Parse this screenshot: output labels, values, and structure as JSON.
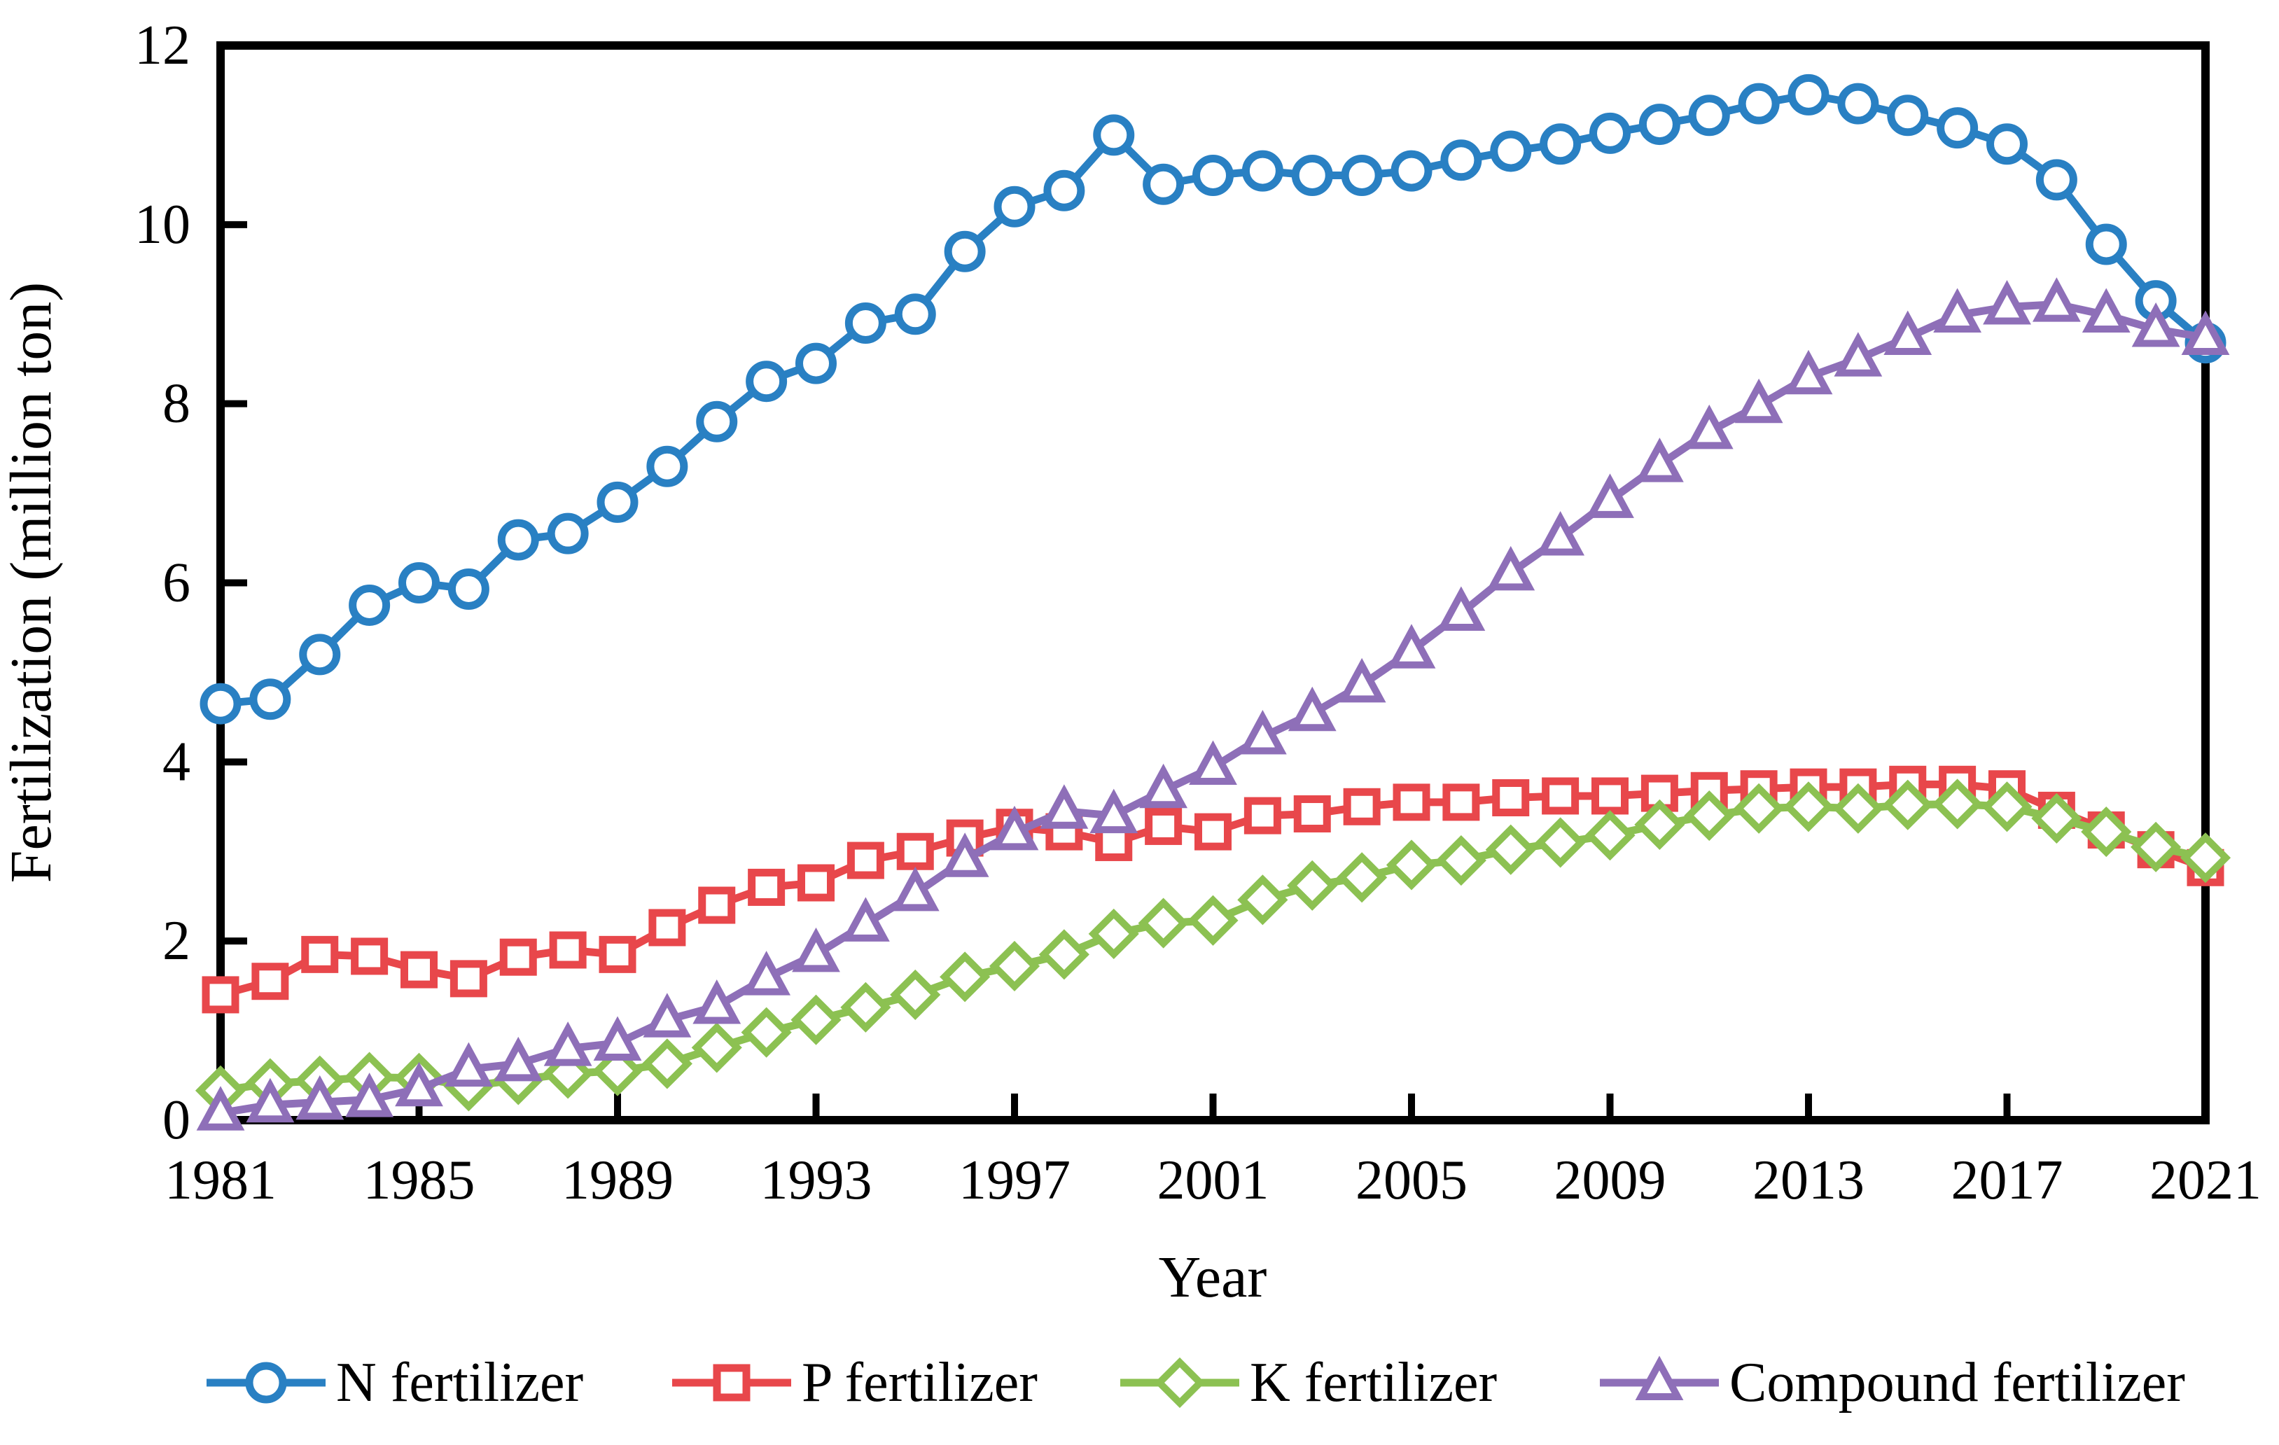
{
  "figure": {
    "background": "#ffffff",
    "text_color": "#000000"
  },
  "chart_data": {
    "type": "line",
    "title": "",
    "xlabel": "Year",
    "ylabel": "Fertilization (million ton)",
    "xlim": [
      1981,
      2021
    ],
    "ylim": [
      0,
      12
    ],
    "x_ticks": [
      1981,
      1985,
      1989,
      1993,
      1997,
      2001,
      2005,
      2009,
      2013,
      2017,
      2021
    ],
    "y_ticks": [
      0,
      2,
      4,
      6,
      8,
      10,
      12
    ],
    "grid": false,
    "legend_position": "bottom",
    "x": [
      1981,
      1982,
      1983,
      1984,
      1985,
      1986,
      1987,
      1988,
      1989,
      1990,
      1991,
      1992,
      1993,
      1994,
      1995,
      1996,
      1997,
      1998,
      1999,
      2000,
      2001,
      2002,
      2003,
      2004,
      2005,
      2006,
      2007,
      2008,
      2009,
      2010,
      2011,
      2012,
      2013,
      2014,
      2015,
      2016,
      2017,
      2018,
      2019,
      2020,
      2021
    ],
    "series": [
      {
        "name": "N fertilizer",
        "marker": "circle",
        "color": "#2980C3",
        "values": [
          4.65,
          4.7,
          5.2,
          5.75,
          6.0,
          5.93,
          6.48,
          6.55,
          6.9,
          7.3,
          7.8,
          8.25,
          8.45,
          8.9,
          9.0,
          9.7,
          10.2,
          10.38,
          11.0,
          10.45,
          10.55,
          10.6,
          10.55,
          10.55,
          10.6,
          10.72,
          10.82,
          10.9,
          11.02,
          11.12,
          11.22,
          11.35,
          11.45,
          11.35,
          11.22,
          11.08,
          10.9,
          10.5,
          9.78,
          9.15,
          8.68
        ]
      },
      {
        "name": "P fertilizer",
        "marker": "square",
        "color": "#E8474B",
        "values": [
          1.4,
          1.55,
          1.85,
          1.83,
          1.68,
          1.58,
          1.82,
          1.9,
          1.85,
          2.15,
          2.4,
          2.6,
          2.65,
          2.9,
          3.0,
          3.15,
          3.27,
          3.22,
          3.1,
          3.28,
          3.22,
          3.4,
          3.42,
          3.5,
          3.55,
          3.55,
          3.6,
          3.62,
          3.62,
          3.65,
          3.68,
          3.7,
          3.72,
          3.72,
          3.75,
          3.75,
          3.7,
          3.46,
          3.24,
          3.02,
          2.82
        ]
      },
      {
        "name": "K fertilizer",
        "marker": "diamond",
        "color": "#8CC152",
        "values": [
          0.33,
          0.41,
          0.44,
          0.48,
          0.47,
          0.38,
          0.45,
          0.52,
          0.55,
          0.63,
          0.81,
          0.98,
          1.12,
          1.26,
          1.4,
          1.6,
          1.72,
          1.85,
          2.08,
          2.2,
          2.23,
          2.46,
          2.62,
          2.71,
          2.85,
          2.9,
          3.02,
          3.1,
          3.18,
          3.3,
          3.4,
          3.48,
          3.5,
          3.48,
          3.52,
          3.53,
          3.5,
          3.37,
          3.22,
          3.05,
          2.93
        ]
      },
      {
        "name": "Compound fertilizer",
        "marker": "triangle",
        "color": "#8E6FB8",
        "values": [
          0.08,
          0.17,
          0.2,
          0.23,
          0.35,
          0.57,
          0.63,
          0.8,
          0.86,
          1.12,
          1.27,
          1.59,
          1.85,
          2.19,
          2.53,
          2.91,
          3.21,
          3.45,
          3.4,
          3.68,
          3.94,
          4.28,
          4.54,
          4.86,
          5.24,
          5.66,
          6.11,
          6.5,
          6.92,
          7.32,
          7.69,
          7.98,
          8.3,
          8.5,
          8.74,
          8.99,
          9.08,
          9.11,
          8.99,
          8.83,
          8.74
        ]
      }
    ]
  }
}
